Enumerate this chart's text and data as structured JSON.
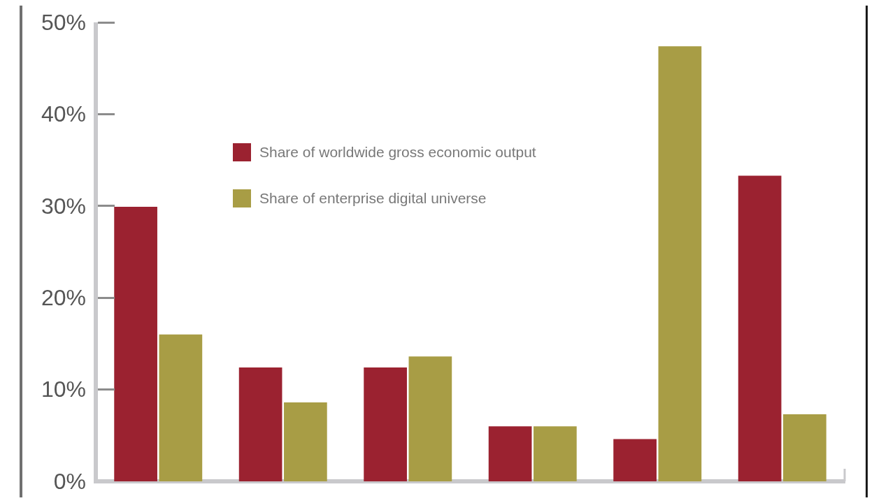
{
  "chart_data": {
    "type": "bar",
    "categories": [
      null,
      null,
      null,
      null,
      null,
      null
    ],
    "series": [
      {
        "name": "Share of worldwide gross economic output",
        "color": "#9b2230",
        "values": [
          29.9,
          12.4,
          12.4,
          6.0,
          4.6,
          33.3
        ]
      },
      {
        "name": "Share of enterprise digital universe",
        "color": "#a89d45",
        "values": [
          16.0,
          8.6,
          13.6,
          6.0,
          47.4,
          7.3
        ]
      }
    ],
    "ylim": [
      0,
      50
    ],
    "yticks": [
      {
        "value": 0,
        "label": "0%"
      },
      {
        "value": 10,
        "label": "10%"
      },
      {
        "value": 20,
        "label": "20%"
      },
      {
        "value": 30,
        "label": "30%"
      },
      {
        "value": 40,
        "label": "40%"
      },
      {
        "value": 50,
        "label": "50%"
      }
    ],
    "legend": "top"
  }
}
